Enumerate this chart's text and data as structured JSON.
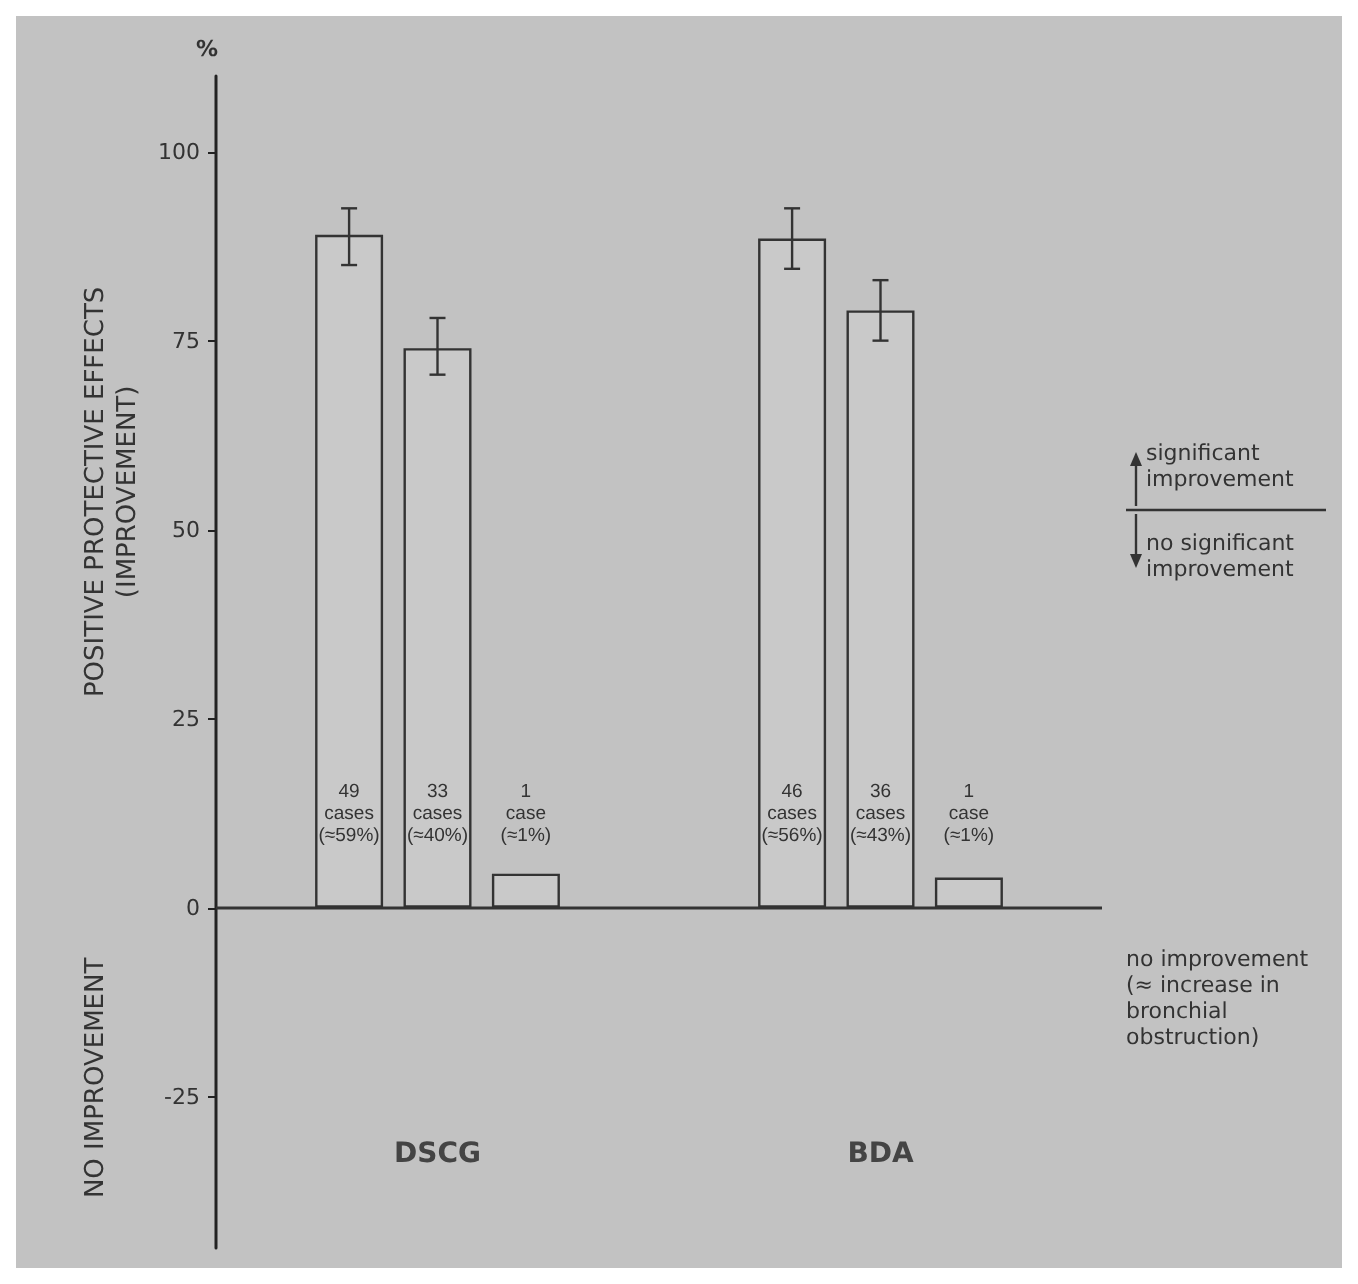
{
  "chart_data": {
    "type": "bar",
    "ylabel": "POSITIVE PROTECTIVE EFFECTS\n(IMPROVEMENT)",
    "categories": [
      "DSCG",
      "BDA"
    ],
    "series": [
      {
        "color": "#c9c9c9",
        "values": [
          89,
          88.5
        ],
        "errors": [
          [
            85,
            92.5
          ],
          [
            84.5,
            92.5
          ]
        ]
      },
      {
        "color": "#c9c9c9",
        "values": [
          74,
          79
        ],
        "errors": [
          [
            70.5,
            78
          ],
          [
            75,
            83
          ]
        ]
      },
      {
        "color": "#c9c9c9",
        "values": [
          4.5,
          4
        ]
      }
    ],
    "ylim": [
      -45,
      110
    ],
    "yticks": [
      -25,
      0,
      25,
      50,
      75,
      100
    ],
    "ref_lines": [
      {
        "axis": "y",
        "value": 0,
        "color": "#333333"
      }
    ],
    "annotations": [
      "%",
      "NO IMPROVEMENT",
      "significant\nimprovement",
      "no significant\nimprovement",
      "no improvement\n(≈ increase in\nbronchial\nobstruction)",
      "49\ncases\n(≈59%)",
      "46\ncases\n(≈56%)",
      "33\ncases\n(≈40%)",
      "36\ncases\n(≈43%)",
      "1\ncase\n(≈1%)",
      "1\ncase\n(≈1%)"
    ],
    "grid": false
  }
}
